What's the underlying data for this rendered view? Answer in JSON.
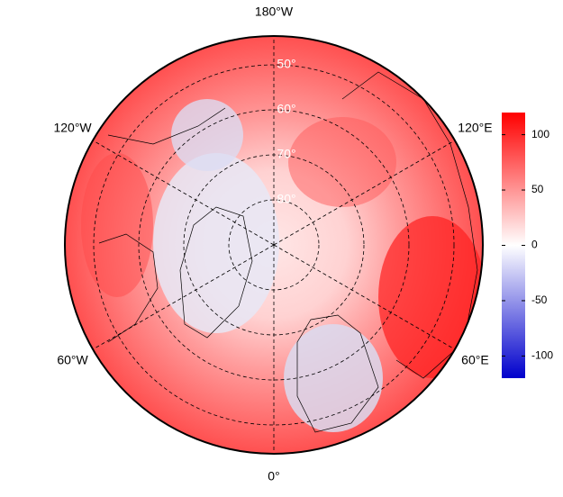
{
  "map": {
    "longitude_labels": [
      {
        "value": -180,
        "label": "180°W"
      },
      {
        "value": -120,
        "label": "120°W"
      },
      {
        "value": 120,
        "label": "120°E"
      },
      {
        "value": -60,
        "label": "60°W"
      },
      {
        "value": 60,
        "label": "60°E"
      },
      {
        "value": 0,
        "label": "0°"
      }
    ],
    "latitude_labels": [
      {
        "value": 50,
        "label": "50°"
      },
      {
        "value": 60,
        "label": "60°"
      },
      {
        "value": 70,
        "label": "70°"
      },
      {
        "value": 80,
        "label": "80°"
      }
    ]
  },
  "colorbar": {
    "lim": [
      -120,
      120
    ],
    "ticks": [
      100,
      50,
      0,
      -50,
      -100
    ],
    "colors": [
      "#0000cc",
      "#ffffff",
      "#ff0000"
    ]
  }
}
